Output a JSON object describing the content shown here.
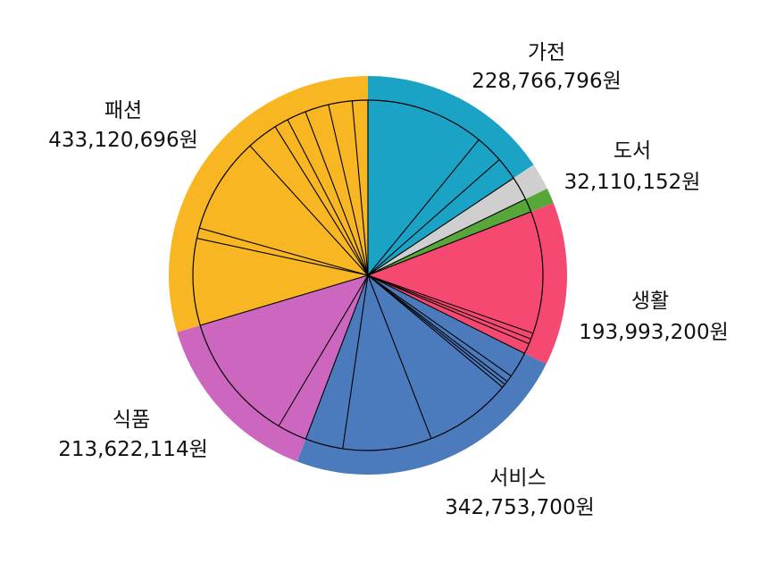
{
  "chart_data": {
    "type": "pie",
    "start": "top",
    "direction": "clockwise",
    "slices": [
      {
        "name": "가전",
        "value": 228766796,
        "label": "228,766,796원",
        "color": "#1ba3c6"
      },
      {
        "name": "도서",
        "value": 32110152,
        "label": "32,110,152원",
        "color": "#cfcfcf"
      },
      {
        "name": "",
        "value": 18400000,
        "label": "",
        "color": "#57a639"
      },
      {
        "name": "생활",
        "value": 193993200,
        "label": "193,993,200원",
        "color": "#f64971"
      },
      {
        "name": "서비스",
        "value": 342753700,
        "label": "342,753,700원",
        "color": "#4c7bbd"
      },
      {
        "name": "식품",
        "value": 213622114,
        "label": "213,622,114원",
        "color": "#cc66bf"
      },
      {
        "name": "패션",
        "value": 433120696,
        "label": "433,120,696원",
        "color": "#f7b622"
      }
    ],
    "sub_slices": [
      [
        160,
        38,
        31
      ],
      [
        32
      ],
      [
        18
      ],
      [
        165,
        8,
        7,
        14
      ],
      [
        35,
        9,
        5,
        5,
        118,
        120,
        51
      ],
      [
        40,
        174
      ],
      [
        117,
        14,
        130,
        42,
        19,
        26,
        32,
        32,
        21
      ]
    ]
  }
}
